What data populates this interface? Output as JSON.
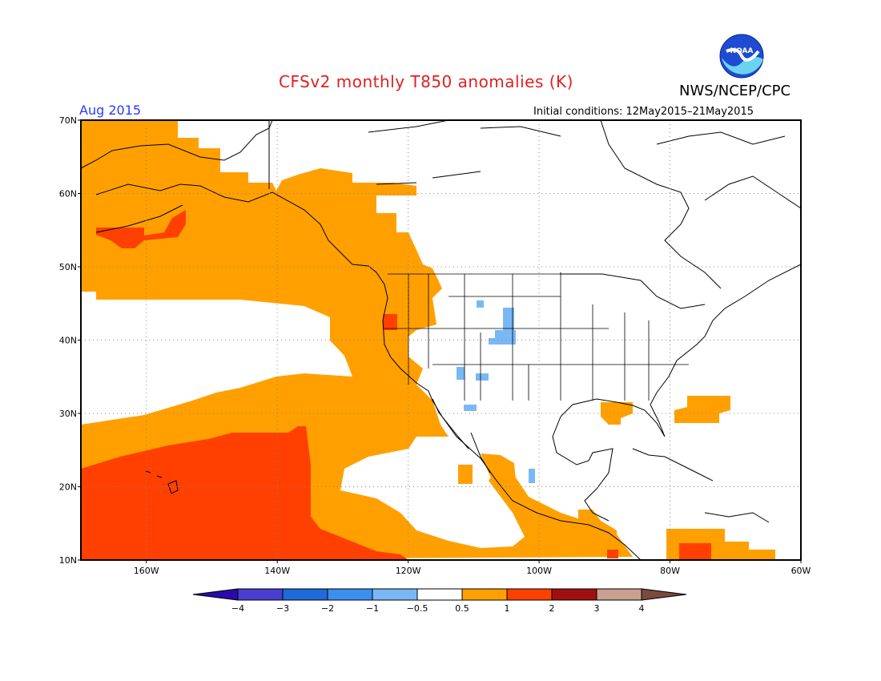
{
  "title": "CFSv2 monthly T850 anomalies (K)",
  "agency": "NWS/NCEP/CPC",
  "logo_text": "NOAA",
  "month": "Aug 2015",
  "initial_conditions": "Initial conditions: 12May2015–21May2015",
  "map": {
    "projection": "equirectangular",
    "lon_range": [
      -170,
      -60
    ],
    "lat_range": [
      10,
      70
    ],
    "lat_ticks": [
      "10N",
      "20N",
      "30N",
      "40N",
      "50N",
      "60N",
      "70N"
    ],
    "lon_ticks": [
      "160W",
      "140W",
      "120W",
      "100W",
      "80W",
      "60W"
    ],
    "gridlines": "dotted"
  },
  "colorbar": {
    "labels": [
      "−4",
      "−3",
      "−2",
      "−1",
      "−0.5",
      "0.5",
      "1",
      "2",
      "3",
      "4"
    ],
    "colors": [
      "#2a0aa8",
      "#4a3ed0",
      "#1f6ad8",
      "#3c8ef0",
      "#7ab8f5",
      "#ffffff",
      "#ffa000",
      "#ff4000",
      "#a01010",
      "#c8a090",
      "#7a4a3a"
    ]
  },
  "anomaly_regions": [
    {
      "name": "gulf-of-alaska-warm",
      "category": "0.5 to 1"
    },
    {
      "name": "alaska-peninsula-warm",
      "category": "1 to 2"
    },
    {
      "name": "west-coast-warm",
      "category": "0.5 to 1"
    },
    {
      "name": "oregon-warm-patch",
      "category": "1 to 2"
    },
    {
      "name": "subtropical-pacific-warm",
      "category": "0.5 to 1"
    },
    {
      "name": "hawaii-region-warm",
      "category": "1 to 2"
    },
    {
      "name": "gulf-coast-warm",
      "category": "0.5 to 1"
    },
    {
      "name": "atlantic-warm",
      "category": "0.5 to 1"
    },
    {
      "name": "caribbean-warm",
      "category": "1 to 2"
    },
    {
      "name": "rockies-cool",
      "category": "-1 to -0.5"
    }
  ]
}
